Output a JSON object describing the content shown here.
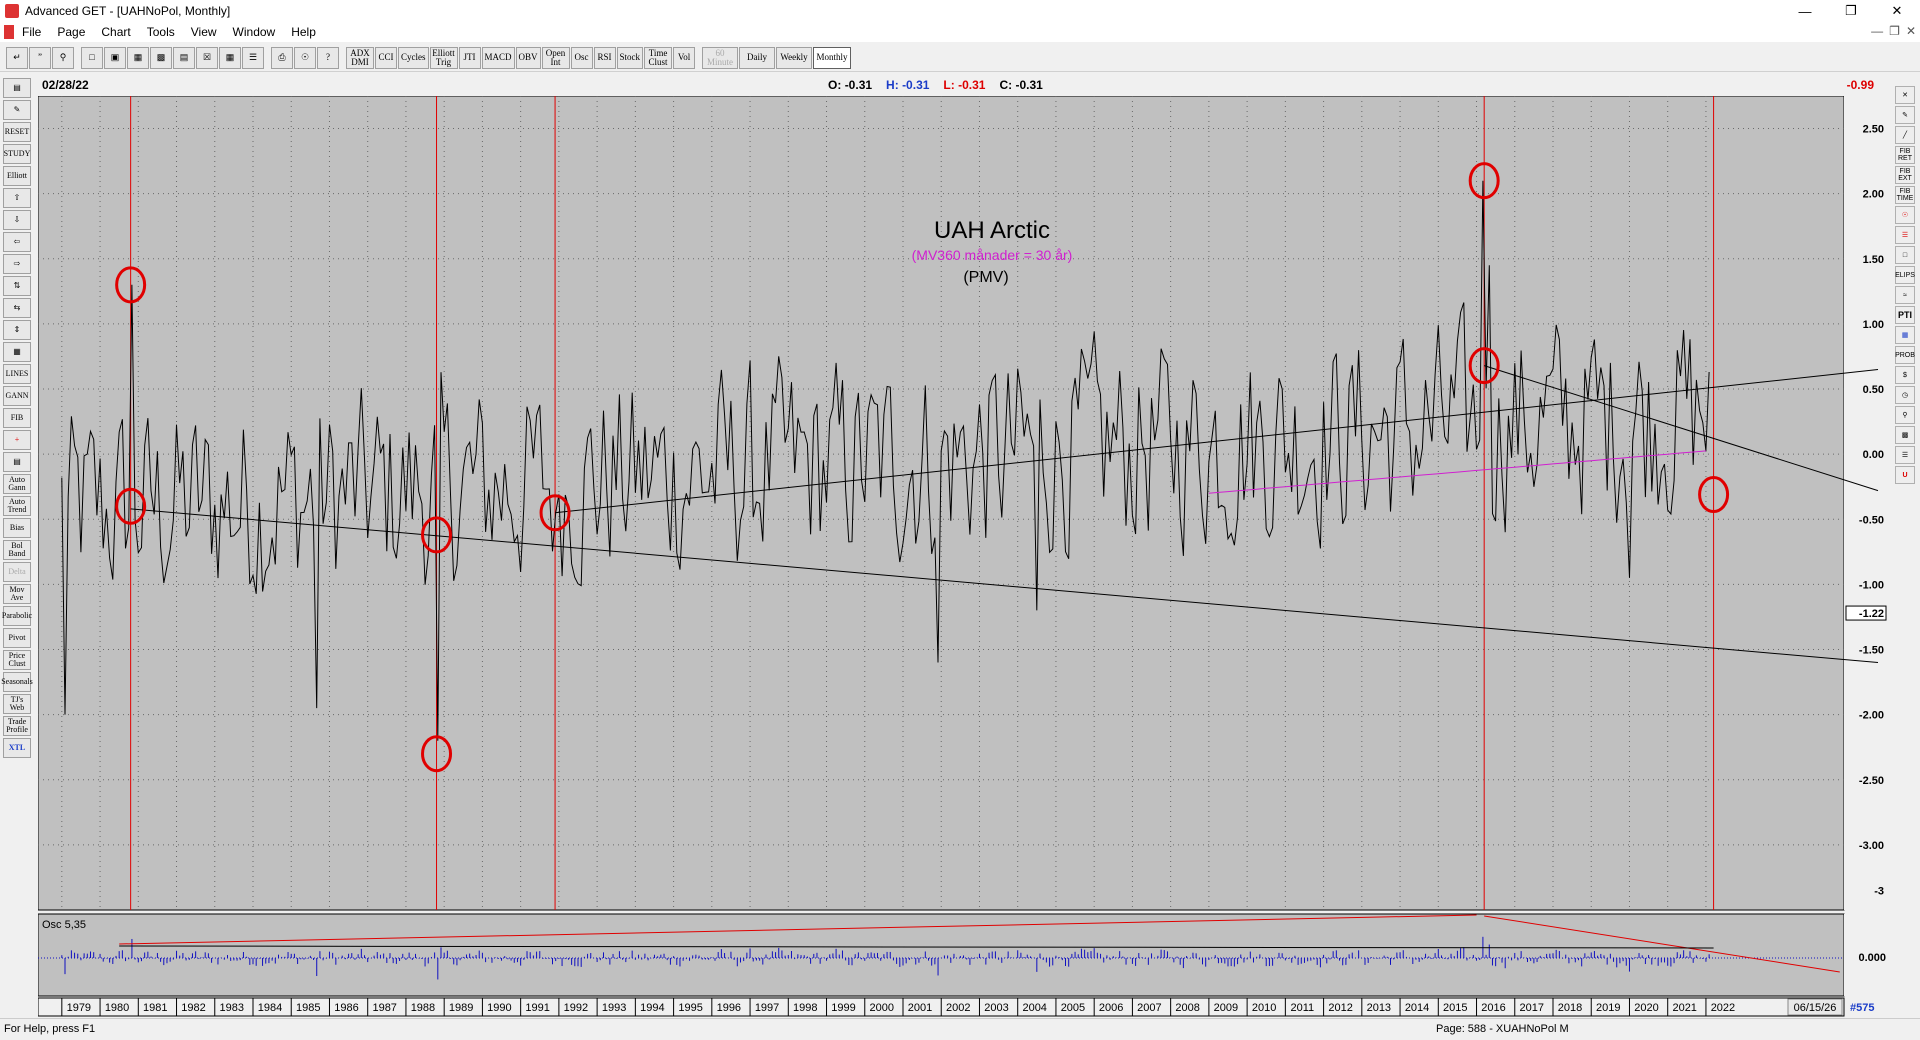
{
  "window": {
    "title": "Advanced GET - [UAHNoPol, Monthly]"
  },
  "menu": [
    "File",
    "Page",
    "Chart",
    "Tools",
    "View",
    "Window",
    "Help"
  ],
  "toolbar": {
    "indicators": [
      "ADX DMI",
      "CCI",
      "Cycles",
      "Elliott Trig",
      "JTI",
      "MACD",
      "OBV",
      "Open Int",
      "Osc",
      "RSI",
      "Stock",
      "Time Clust",
      "Vol"
    ],
    "timeframes": {
      "minute": "60 Minute",
      "daily": "Daily",
      "weekly": "Weekly",
      "monthly": "Monthly"
    }
  },
  "left_toolbar": [
    "RESET",
    "STUDY",
    "Elliott",
    "LINES",
    "GANN",
    "FIB",
    "Auto Gann",
    "Auto Trend",
    "Bias",
    "Bol Band",
    "Delta",
    "Mov Ave",
    "Parabolic",
    "Pivot",
    "Price Clust",
    "Seasonals",
    "TJ's Web",
    "Trade Profile",
    "XTL"
  ],
  "right_toolbar": [
    "FIB RET",
    "FIB EXT",
    "FIB TIME",
    "ELIPS",
    "PTI",
    "PROB"
  ],
  "info_bar": {
    "date": "02/28/22",
    "open_label": "O:",
    "open": "-0.31",
    "high_label": "H:",
    "high": "-0.31",
    "low_label": "L:",
    "low": "-0.31",
    "close_label": "C:",
    "close": "-0.31",
    "last_value": "-0.99"
  },
  "chart_data": {
    "type": "line",
    "title": "UAH Arctic",
    "subtitle": "(MV360 månader = 30 år)",
    "subtitle2": "(PMV)",
    "y_ticks": [
      "2.50",
      "2.00",
      "1.50",
      "1.00",
      "0.50",
      "0.00",
      "-0.50",
      "-1.00",
      "-1.50",
      "-2.00",
      "-2.50",
      "-3.00",
      "-3"
    ],
    "ylim": [
      -3.5,
      2.75
    ],
    "price_marker": "-1.22",
    "x_ticks": [
      "1979",
      "1980",
      "1981",
      "1982",
      "1983",
      "1984",
      "1985",
      "1986",
      "1987",
      "1988",
      "1989",
      "1990",
      "1991",
      "1992",
      "1993",
      "1994",
      "1995",
      "1996",
      "1997",
      "1998",
      "1999",
      "2000",
      "2001",
      "2002",
      "2003",
      "2004",
      "2005",
      "2006",
      "2007",
      "2008",
      "2009",
      "2010",
      "2011",
      "2012",
      "2013",
      "2014",
      "2015",
      "2016",
      "2017",
      "2018",
      "2019",
      "2020",
      "2021",
      "2022"
    ],
    "end_date": "06/15/26",
    "bar_count": "#575",
    "osc_label": "Osc 5,35",
    "osc_value": "0.000",
    "marked_points": [
      {
        "date": "1980.8",
        "value": 1.3
      },
      {
        "date": "1980.8",
        "value": -0.4
      },
      {
        "date": "1988.8",
        "value": -2.3
      },
      {
        "date": "1988.8",
        "value": -0.62
      },
      {
        "date": "1991.9",
        "value": -0.45
      },
      {
        "date": "2016.2",
        "value": 2.1
      },
      {
        "date": "2016.2",
        "value": 0.68
      },
      {
        "date": "2022.2",
        "value": -0.31
      }
    ],
    "vertical_lines": [
      1980.8,
      1988.8,
      1991.9,
      2016.2,
      2022.2
    ],
    "colors": {
      "background": "#c0c0c0",
      "series": "#000000",
      "marker": "#e00000",
      "moving_average": "#d020d0",
      "oscillator": "#1010c0"
    }
  },
  "status": {
    "help": "For Help, press F1",
    "page": "Page: 588 - XUAHNoPol M"
  }
}
